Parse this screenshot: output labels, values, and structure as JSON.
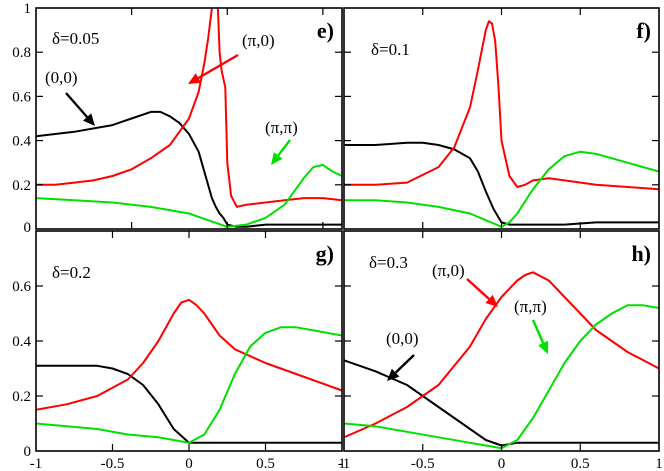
{
  "chart_data": {
    "type": "line",
    "colors": {
      "(0,0)": "#000000",
      "(pi,0)": "#ff0000",
      "(pi,pi)": "#00e000"
    },
    "panels": [
      {
        "id": "e",
        "letter": "e)",
        "delta_label": "δ=0.05",
        "xlim": [
          -1,
          0.6
        ],
        "ylim": [
          0,
          1
        ],
        "yticks": [
          "0",
          "0.2",
          "0.4",
          "0.6",
          "0.8",
          "1"
        ],
        "ytick_values": [
          0,
          0.2,
          0.4,
          0.6,
          0.8,
          1
        ],
        "annotations": [
          "(0,0)",
          "(π,0)",
          "(π,π)"
        ],
        "series": [
          {
            "key": "(0,0)",
            "x": [
              -1.0,
              -0.8,
              -0.6,
              -0.5,
              -0.4,
              -0.35,
              -0.3,
              -0.25,
              -0.2,
              -0.15,
              -0.1,
              -0.08,
              -0.06,
              -0.04,
              -0.02,
              0.0,
              0.05,
              0.1,
              0.2,
              0.3,
              0.4,
              0.5,
              0.6
            ],
            "y": [
              0.42,
              0.44,
              0.47,
              0.5,
              0.53,
              0.53,
              0.51,
              0.48,
              0.43,
              0.35,
              0.2,
              0.14,
              0.1,
              0.07,
              0.05,
              0.02,
              0.01,
              0.01,
              0.02,
              0.02,
              0.02,
              0.02,
              0.02
            ]
          },
          {
            "key": "(pi,0)",
            "x": [
              -1.0,
              -0.9,
              -0.8,
              -0.7,
              -0.6,
              -0.5,
              -0.4,
              -0.3,
              -0.2,
              -0.15,
              -0.12,
              -0.1,
              -0.09,
              -0.08,
              -0.07,
              -0.06,
              -0.05,
              -0.04,
              -0.03,
              -0.02,
              -0.01,
              0.0,
              0.02,
              0.05,
              0.1,
              0.2,
              0.3,
              0.4,
              0.5,
              0.6
            ],
            "y": [
              0.2,
              0.2,
              0.21,
              0.22,
              0.24,
              0.27,
              0.32,
              0.38,
              0.5,
              0.62,
              0.75,
              0.86,
              0.93,
              1.0,
              1.02,
              1.02,
              1.02,
              0.8,
              0.72,
              0.68,
              0.64,
              0.3,
              0.15,
              0.1,
              0.11,
              0.12,
              0.13,
              0.14,
              0.14,
              0.13
            ]
          },
          {
            "key": "(pi,pi)",
            "x": [
              -1.0,
              -0.8,
              -0.6,
              -0.4,
              -0.2,
              -0.1,
              0.0,
              0.1,
              0.2,
              0.3,
              0.4,
              0.45,
              0.5,
              0.55,
              0.6
            ],
            "y": [
              0.14,
              0.13,
              0.12,
              0.1,
              0.07,
              0.04,
              0.01,
              0.02,
              0.05,
              0.11,
              0.23,
              0.28,
              0.29,
              0.26,
              0.24
            ]
          }
        ]
      },
      {
        "id": "f",
        "letter": "f)",
        "delta_label": "δ=0.1",
        "xlim": [
          -1,
          1
        ],
        "ylim": [
          0,
          1
        ],
        "yticks": [],
        "ytick_values": [
          0,
          0.2,
          0.4,
          0.6,
          0.8,
          1
        ],
        "annotations": [],
        "series": [
          {
            "key": "(0,0)",
            "x": [
              -1.0,
              -0.8,
              -0.6,
              -0.5,
              -0.4,
              -0.3,
              -0.2,
              -0.15,
              -0.1,
              -0.05,
              0.0,
              0.05,
              0.1,
              0.2,
              0.4,
              0.6,
              0.8,
              1.0
            ],
            "y": [
              0.38,
              0.38,
              0.39,
              0.39,
              0.38,
              0.36,
              0.32,
              0.26,
              0.17,
              0.09,
              0.03,
              0.02,
              0.02,
              0.02,
              0.02,
              0.03,
              0.03,
              0.03
            ]
          },
          {
            "key": "(pi,0)",
            "x": [
              -1.0,
              -0.8,
              -0.6,
              -0.4,
              -0.3,
              -0.2,
              -0.15,
              -0.1,
              -0.08,
              -0.06,
              -0.04,
              -0.02,
              0.0,
              0.05,
              0.1,
              0.15,
              0.2,
              0.3,
              0.4,
              0.6,
              0.8,
              1.0
            ],
            "y": [
              0.2,
              0.2,
              0.21,
              0.28,
              0.37,
              0.55,
              0.72,
              0.9,
              0.94,
              0.93,
              0.85,
              0.65,
              0.4,
              0.24,
              0.19,
              0.2,
              0.22,
              0.23,
              0.22,
              0.2,
              0.19,
              0.18
            ]
          },
          {
            "key": "(pi,pi)",
            "x": [
              -1.0,
              -0.8,
              -0.6,
              -0.4,
              -0.2,
              -0.1,
              0.0,
              0.05,
              0.1,
              0.2,
              0.3,
              0.4,
              0.5,
              0.6,
              0.8,
              1.0
            ],
            "y": [
              0.13,
              0.13,
              0.12,
              0.1,
              0.07,
              0.04,
              0.01,
              0.03,
              0.07,
              0.18,
              0.27,
              0.33,
              0.35,
              0.34,
              0.3,
              0.26
            ]
          }
        ]
      },
      {
        "id": "g",
        "letter": "g)",
        "delta_label": "δ=0.2",
        "xlim": [
          -1,
          1
        ],
        "ylim": [
          0,
          0.8
        ],
        "xticks": [
          "-1",
          "-0.5",
          "0",
          "0.5",
          "1"
        ],
        "xtick_values": [
          -1,
          -0.5,
          0,
          0.5,
          1
        ],
        "yticks": [
          "0",
          "0.2",
          "0.4",
          "0.6"
        ],
        "ytick_values": [
          0,
          0.2,
          0.4,
          0.6
        ],
        "annotations": [],
        "series": [
          {
            "key": "(0,0)",
            "x": [
              -1.0,
              -0.8,
              -0.6,
              -0.5,
              -0.4,
              -0.3,
              -0.2,
              -0.1,
              0.0,
              0.1,
              0.3,
              0.5,
              0.7,
              1.0
            ],
            "y": [
              0.31,
              0.31,
              0.31,
              0.3,
              0.28,
              0.24,
              0.17,
              0.08,
              0.03,
              0.03,
              0.03,
              0.03,
              0.03,
              0.03
            ]
          },
          {
            "key": "(pi,0)",
            "x": [
              -1.0,
              -0.8,
              -0.6,
              -0.4,
              -0.3,
              -0.2,
              -0.1,
              -0.05,
              0.0,
              0.05,
              0.1,
              0.2,
              0.3,
              0.5,
              0.7,
              1.0
            ],
            "y": [
              0.15,
              0.17,
              0.2,
              0.26,
              0.32,
              0.4,
              0.5,
              0.54,
              0.55,
              0.53,
              0.5,
              0.42,
              0.37,
              0.32,
              0.28,
              0.22
            ]
          },
          {
            "key": "(pi,pi)",
            "x": [
              -1.0,
              -0.8,
              -0.6,
              -0.4,
              -0.2,
              -0.1,
              0.0,
              0.1,
              0.2,
              0.3,
              0.4,
              0.5,
              0.6,
              0.7,
              0.8,
              1.0
            ],
            "y": [
              0.1,
              0.09,
              0.08,
              0.06,
              0.05,
              0.04,
              0.03,
              0.06,
              0.15,
              0.28,
              0.38,
              0.43,
              0.45,
              0.45,
              0.44,
              0.42
            ]
          }
        ]
      },
      {
        "id": "h",
        "letter": "h)",
        "delta_label": "δ=0.3",
        "xlim": [
          -1,
          1
        ],
        "ylim": [
          0,
          0.8
        ],
        "xticks": [
          "-1",
          "-0.5",
          "0",
          "0.5",
          "1"
        ],
        "xtick_values": [
          -1,
          -0.5,
          0,
          0.5,
          1
        ],
        "yticks": [],
        "ytick_values": [
          0,
          0.2,
          0.4,
          0.6
        ],
        "annotations": [
          "(0,0)",
          "(π,0)",
          "(π,π)"
        ],
        "series": [
          {
            "key": "(0,0)",
            "x": [
              -1.0,
              -0.8,
              -0.6,
              -0.5,
              -0.4,
              -0.3,
              -0.2,
              -0.1,
              0.0,
              0.1,
              0.3,
              0.5,
              0.7,
              1.0
            ],
            "y": [
              0.33,
              0.29,
              0.24,
              0.2,
              0.16,
              0.12,
              0.08,
              0.04,
              0.02,
              0.03,
              0.03,
              0.03,
              0.03,
              0.03
            ]
          },
          {
            "key": "(pi,0)",
            "x": [
              -1.0,
              -0.8,
              -0.6,
              -0.4,
              -0.2,
              -0.1,
              0.0,
              0.1,
              0.15,
              0.2,
              0.3,
              0.4,
              0.5,
              0.6,
              0.8,
              1.0
            ],
            "y": [
              0.05,
              0.1,
              0.16,
              0.24,
              0.38,
              0.48,
              0.56,
              0.62,
              0.64,
              0.65,
              0.62,
              0.56,
              0.5,
              0.44,
              0.36,
              0.3
            ]
          },
          {
            "key": "(pi,pi)",
            "x": [
              -1.0,
              -0.8,
              -0.6,
              -0.4,
              -0.2,
              -0.1,
              0.0,
              0.1,
              0.2,
              0.3,
              0.4,
              0.5,
              0.6,
              0.7,
              0.8,
              0.9,
              1.0
            ],
            "y": [
              0.1,
              0.09,
              0.07,
              0.05,
              0.03,
              0.02,
              0.01,
              0.04,
              0.12,
              0.22,
              0.32,
              0.4,
              0.46,
              0.5,
              0.53,
              0.53,
              0.52
            ]
          }
        ]
      }
    ]
  }
}
